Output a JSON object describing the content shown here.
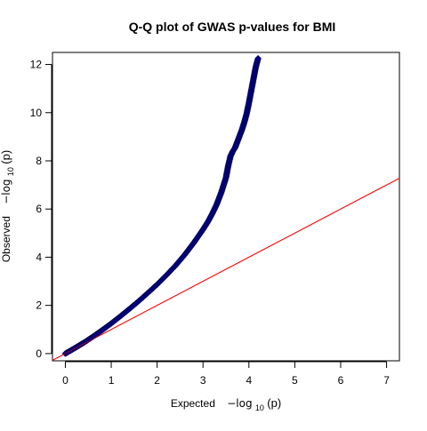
{
  "chart_data": {
    "type": "scatter",
    "title": "Q-Q plot of GWAS p-values for BMI",
    "xlabel": {
      "text": "Expected",
      "math": "−log",
      "sub": "10",
      "arg": "(p)"
    },
    "ylabel": {
      "text": "Observed",
      "math": "−log",
      "sub": "10",
      "arg": "(p)"
    },
    "xlim": [
      -0.28,
      7.28
    ],
    "ylim": [
      -0.3,
      12.5
    ],
    "x_ticks": [
      0,
      1,
      2,
      3,
      4,
      5,
      6,
      7
    ],
    "y_ticks": [
      0,
      2,
      4,
      6,
      8,
      10,
      12
    ],
    "grid": false,
    "legend": "none",
    "point_color": "#00008B",
    "point_marker": "diamond",
    "reference_line": {
      "slope": 1,
      "intercept": 0,
      "color": "#FF0000"
    },
    "curve_points": {
      "x": [
        0,
        0.2,
        0.4,
        0.6,
        0.8,
        1.0,
        1.2,
        1.4,
        1.6,
        1.8,
        2.0,
        2.2,
        2.4,
        2.6,
        2.8,
        3.0,
        3.1,
        3.2,
        3.3,
        3.4,
        3.5,
        3.55,
        3.6,
        3.65,
        3.7,
        3.75,
        3.8,
        3.85,
        3.9,
        3.95,
        4.0,
        4.05,
        4.1,
        4.15,
        4.2
      ],
      "y": [
        0,
        0.22,
        0.45,
        0.7,
        0.97,
        1.25,
        1.55,
        1.86,
        2.18,
        2.52,
        2.87,
        3.25,
        3.65,
        4.1,
        4.6,
        5.15,
        5.45,
        5.8,
        6.2,
        6.7,
        7.3,
        7.8,
        8.2,
        8.4,
        8.55,
        8.8,
        9.05,
        9.3,
        9.6,
        9.95,
        10.4,
        10.9,
        11.4,
        11.9,
        12.25
      ]
    }
  }
}
